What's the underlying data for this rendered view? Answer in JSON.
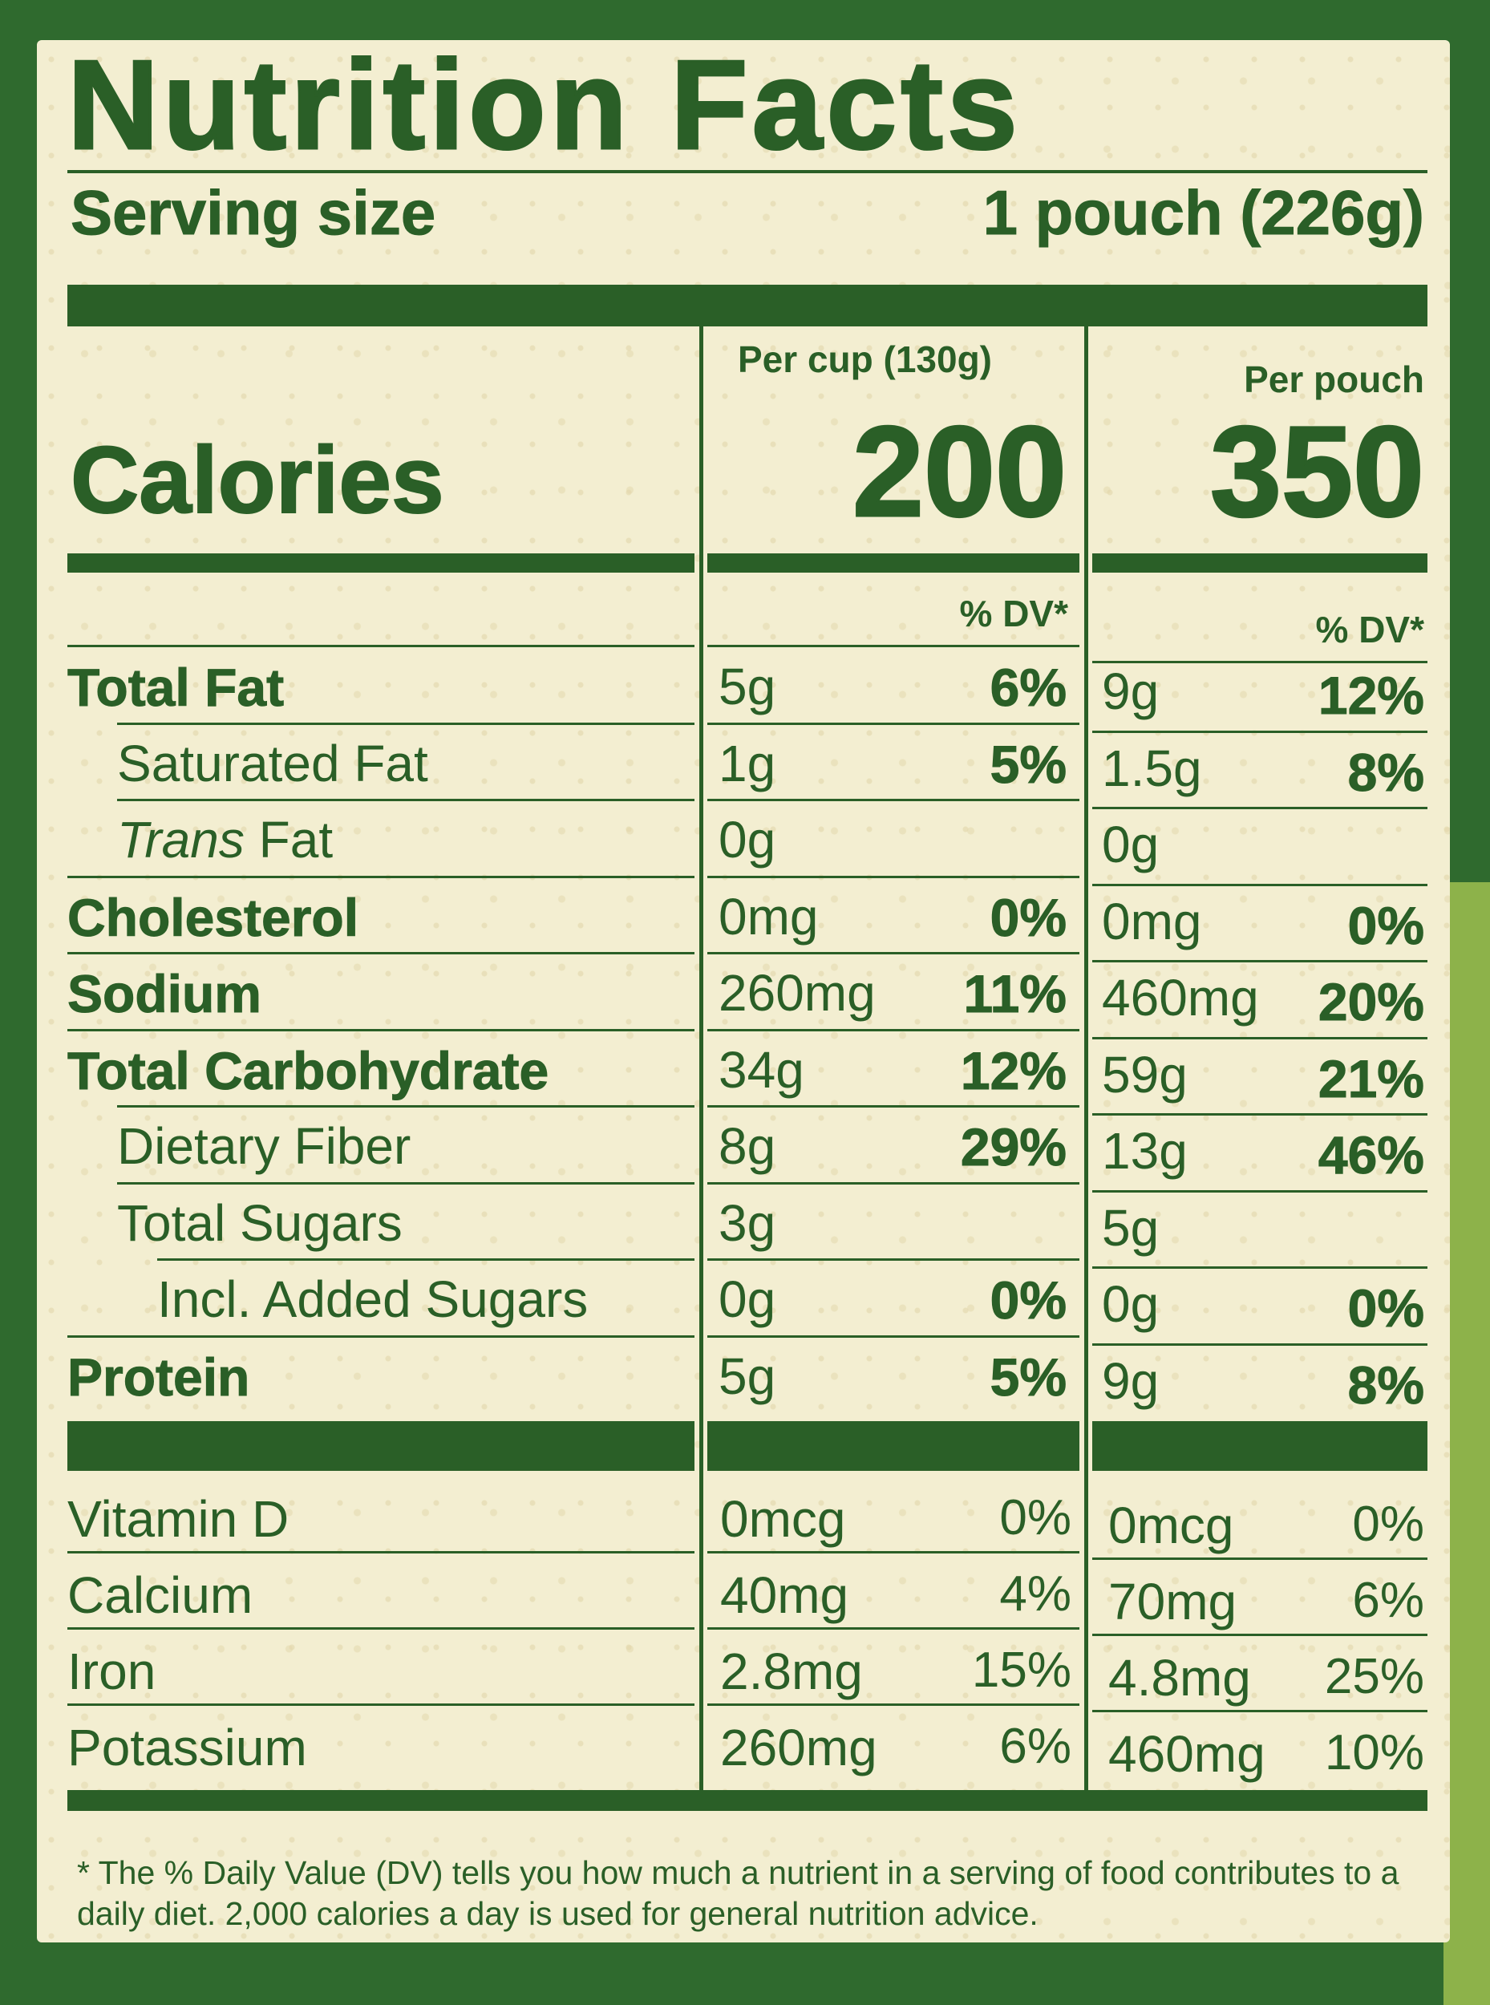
{
  "title": "Nutrition Facts",
  "serving": {
    "label": "Serving size",
    "value": "1 pouch (226g)"
  },
  "columns": {
    "cup_header": "Per cup (130g)",
    "pouch_header": "Per pouch",
    "dv_header": "% DV*"
  },
  "calories": {
    "label": "Calories",
    "cup": "200",
    "pouch": "350"
  },
  "nutrients": [
    {
      "label": "Total Fat",
      "bold": true,
      "indent": 0,
      "cup_amt": "5g",
      "cup_dv": "6%",
      "pouch_amt": "9g",
      "pouch_dv": "12%"
    },
    {
      "label": "Saturated Fat",
      "bold": false,
      "indent": 1,
      "cup_amt": "1g",
      "cup_dv": "5%",
      "pouch_amt": "1.5g",
      "pouch_dv": "8%"
    },
    {
      "label_italic": "Trans",
      "label": " Fat",
      "bold": false,
      "indent": 1,
      "cup_amt": "0g",
      "cup_dv": "",
      "pouch_amt": "0g",
      "pouch_dv": ""
    },
    {
      "label": "Cholesterol",
      "bold": true,
      "indent": 0,
      "cup_amt": "0mg",
      "cup_dv": "0%",
      "pouch_amt": "0mg",
      "pouch_dv": "0%"
    },
    {
      "label": "Sodium",
      "bold": true,
      "indent": 0,
      "cup_amt": "260mg",
      "cup_dv": "11%",
      "pouch_amt": "460mg",
      "pouch_dv": "20%"
    },
    {
      "label": "Total Carbohydrate",
      "bold": true,
      "indent": 0,
      "cup_amt": "34g",
      "cup_dv": "12%",
      "pouch_amt": "59g",
      "pouch_dv": "21%"
    },
    {
      "label": "Dietary Fiber",
      "bold": false,
      "indent": 1,
      "cup_amt": "8g",
      "cup_dv": "29%",
      "pouch_amt": "13g",
      "pouch_dv": "46%"
    },
    {
      "label": "Total Sugars",
      "bold": false,
      "indent": 1,
      "cup_amt": "3g",
      "cup_dv": "",
      "pouch_amt": "5g",
      "pouch_dv": ""
    },
    {
      "label": "Incl. Added Sugars",
      "bold": false,
      "indent": 2,
      "cup_amt": "0g",
      "cup_dv": "0%",
      "pouch_amt": "0g",
      "pouch_dv": "0%"
    },
    {
      "label": "Protein",
      "bold": true,
      "indent": 0,
      "cup_amt": "5g",
      "cup_dv": "5%",
      "pouch_amt": "9g",
      "pouch_dv": "8%"
    }
  ],
  "vitamins": [
    {
      "label": "Vitamin D",
      "cup_amt": "0mcg",
      "cup_dv": "0%",
      "pouch_amt": "0mcg",
      "pouch_dv": "0%"
    },
    {
      "label": "Calcium",
      "cup_amt": "40mg",
      "cup_dv": "4%",
      "pouch_amt": "70mg",
      "pouch_dv": "6%"
    },
    {
      "label": "Iron",
      "cup_amt": "2.8mg",
      "cup_dv": "15%",
      "pouch_amt": "4.8mg",
      "pouch_dv": "25%"
    },
    {
      "label": "Potassium",
      "cup_amt": "260mg",
      "cup_dv": "6%",
      "pouch_amt": "460mg",
      "pouch_dv": "10%"
    }
  ],
  "footnote": "* The % Daily Value (DV) tells you how much a nutrient in a serving of food contributes to a daily diet. 2,000 calories a day is used for general nutrition advice.",
  "colors": {
    "ink": "#2a5f27",
    "paper": "#f3eed1",
    "lime": "#8db24a"
  }
}
